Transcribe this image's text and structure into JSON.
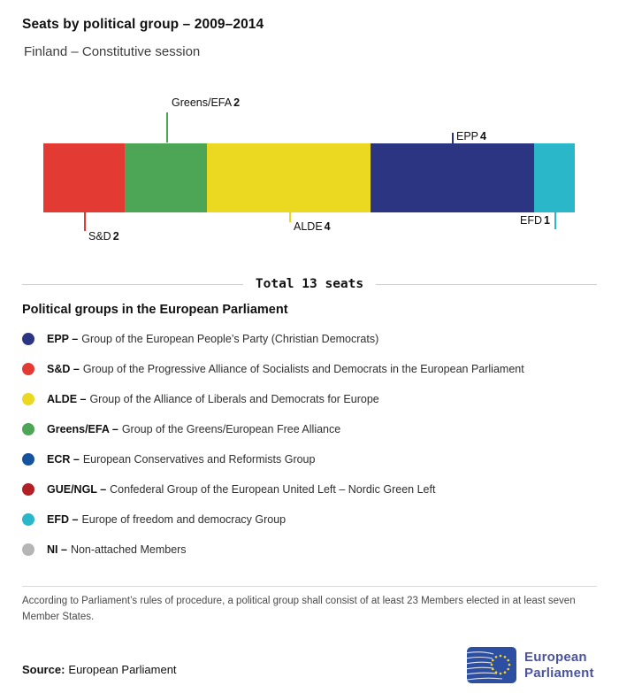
{
  "header": {
    "title": "Seats by political group – 2009–2014",
    "subtitle": "Finland – Constitutive session"
  },
  "chart_data": {
    "type": "bar",
    "title": "Seats by political group – 2009–2014",
    "subtitle": "Finland – Constitutive session",
    "total_seats": 13,
    "total_label": "Total 13 seats",
    "categories": [
      "S&D",
      "Greens/EFA",
      "ALDE",
      "EPP",
      "EFD"
    ],
    "values": [
      2,
      2,
      4,
      4,
      1
    ],
    "series": [
      {
        "name": "S&D",
        "seats": 2,
        "color": "#e33b33",
        "label_side": "below"
      },
      {
        "name": "Greens/EFA",
        "seats": 2,
        "color": "#4da556",
        "label_side": "above"
      },
      {
        "name": "ALDE",
        "seats": 4,
        "color": "#ebd820",
        "label_side": "below"
      },
      {
        "name": "EPP",
        "seats": 4,
        "color": "#2c3582",
        "label_side": "above"
      },
      {
        "name": "EFD",
        "seats": 1,
        "color": "#2ab7c9",
        "label_side": "below"
      }
    ]
  },
  "legend": {
    "heading": "Political groups in the European Parliament",
    "items": [
      {
        "abbr": "EPP –",
        "desc": "Group of the European People’s Party (Christian Democrats)",
        "color": "#2c3582"
      },
      {
        "abbr": "S&D –",
        "desc": "Group of the Progressive Alliance of Socialists and Democrats in the European Parliament",
        "color": "#e33b33"
      },
      {
        "abbr": "ALDE –",
        "desc": "Group of the Alliance of Liberals and Democrats for Europe",
        "color": "#ebd820"
      },
      {
        "abbr": "Greens/EFA –",
        "desc": "Group of the Greens/European Free Alliance",
        "color": "#4da556"
      },
      {
        "abbr": "ECR –",
        "desc": "European Conservatives and Reformists Group",
        "color": "#16539e"
      },
      {
        "abbr": "GUE/NGL –",
        "desc": "Confederal Group of the European United Left – Nordic Green Left",
        "color": "#b21f24"
      },
      {
        "abbr": "EFD –",
        "desc": "Europe of freedom and democracy Group",
        "color": "#2ab7c9"
      },
      {
        "abbr": "NI –",
        "desc": "Non-attached Members",
        "color": "#b5b5b5"
      }
    ]
  },
  "footer": {
    "note": "According to Parliament’s rules of procedure, a political group shall consist of at least 23 Members elected in at least seven Member States.",
    "source_label": "Source:",
    "source_value": "European Parliament",
    "logo": {
      "line1": "European",
      "line2": "Parliament",
      "box_color": "#2d4fa1",
      "text_color": "#4b549d"
    }
  }
}
